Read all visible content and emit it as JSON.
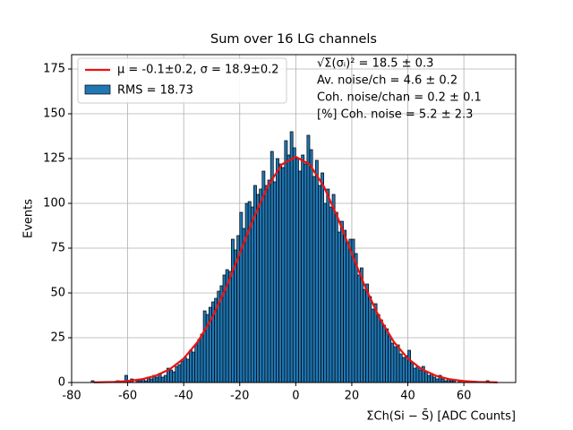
{
  "chart_data": {
    "type": "histogram",
    "title": "Sum over 16 LG channels",
    "x_label": "ΣCh(Si − S̄) [ADC Counts]",
    "y_label": "Events",
    "name": "RMS = 18.73",
    "color": "#1f77b4",
    "edgecolor": "#000000",
    "bins": [
      -73,
      -72,
      -71,
      -70,
      -69,
      -68,
      -67,
      -66,
      -65,
      -64,
      -63,
      -62,
      -61,
      -60,
      -59,
      -58,
      -57,
      -56,
      -55,
      -54,
      -53,
      -52,
      -51,
      -50,
      -49,
      -48,
      -47,
      -46,
      -45,
      -44,
      -43,
      -42,
      -41,
      -40,
      -39,
      -38,
      -37,
      -36,
      -35,
      -34,
      -33,
      -32,
      -31,
      -30,
      -29,
      -28,
      -27,
      -26,
      -25,
      -24,
      -23,
      -22,
      -21,
      -20,
      -19,
      -18,
      -17,
      -16,
      -15,
      -14,
      -13,
      -12,
      -11,
      -10,
      -9,
      -8,
      -7,
      -6,
      -5,
      -4,
      -3,
      -2,
      -1,
      0,
      1,
      2,
      3,
      4,
      5,
      6,
      7,
      8,
      9,
      10,
      11,
      12,
      13,
      14,
      15,
      16,
      17,
      18,
      19,
      20,
      21,
      22,
      23,
      24,
      25,
      26,
      27,
      28,
      29,
      30,
      31,
      32,
      33,
      34,
      35,
      36,
      37,
      38,
      39,
      40,
      41,
      42,
      43,
      44,
      45,
      46,
      47,
      48,
      49,
      50,
      51,
      52,
      53,
      54,
      55,
      56,
      57,
      58,
      59,
      60,
      61,
      62,
      63,
      64,
      65,
      66,
      67,
      68,
      69,
      70,
      71,
      72
    ],
    "counts": [
      1,
      0,
      0,
      0,
      0,
      0,
      0,
      0,
      0,
      1,
      0,
      0,
      4,
      1,
      2,
      0,
      1,
      1,
      2,
      1,
      3,
      2,
      4,
      3,
      5,
      3,
      4,
      8,
      7,
      6,
      9,
      10,
      12,
      14,
      13,
      18,
      17,
      21,
      24,
      27,
      40,
      38,
      42,
      45,
      47,
      51,
      54,
      60,
      63,
      62,
      80,
      74,
      82,
      95,
      86,
      100,
      101,
      98,
      110,
      105,
      108,
      118,
      110,
      113,
      129,
      112,
      125,
      122,
      120,
      135,
      127,
      140,
      131,
      125,
      118,
      127,
      122,
      138,
      130,
      115,
      124,
      110,
      117,
      100,
      108,
      98,
      105,
      95,
      84,
      90,
      85,
      78,
      80,
      80,
      72,
      60,
      64,
      52,
      55,
      48,
      41,
      44,
      38,
      35,
      32,
      30,
      26,
      22,
      20,
      21,
      16,
      14,
      15,
      18,
      11,
      8,
      9,
      7,
      9,
      6,
      4,
      5,
      3,
      2,
      4,
      2,
      1,
      2,
      1,
      1,
      0,
      1,
      0,
      0,
      0,
      0,
      0,
      0,
      0,
      0,
      0,
      1,
      0,
      0,
      0
    ],
    "fit": {
      "name": "μ = -0.1±0.2, σ = 18.9±0.2",
      "color": "#ee1111",
      "x": [
        -72,
        -65,
        -60,
        -55,
        -50,
        -45,
        -40,
        -35,
        -30,
        -25,
        -20,
        -15,
        -10,
        -5,
        0,
        5,
        10,
        15,
        20,
        25,
        30,
        35,
        40,
        45,
        50,
        55,
        60,
        65,
        72
      ],
      "values": [
        0.09,
        0.34,
        0.8,
        1.8,
        3.8,
        7.4,
        13.4,
        22.7,
        35.7,
        52.5,
        72.0,
        91.9,
        109.5,
        121.7,
        126,
        121.7,
        109.5,
        91.9,
        72.0,
        52.5,
        35.7,
        22.7,
        13.4,
        7.4,
        3.8,
        1.8,
        0.8,
        0.34,
        0.09
      ]
    },
    "annotations": [
      "√Σ(σᵢ)² = 18.5 ± 0.3",
      "Av. noise/ch  = 4.6 ± 0.2",
      "Coh. noise/chan  = 0.2 ± 0.1",
      "[%] Coh. noise  = 5.2 ± 2.3"
    ],
    "xlim": [
      -80,
      78.5
    ],
    "ylim": [
      0,
      183
    ],
    "xticks": [
      -80,
      -60,
      -40,
      -20,
      0,
      20,
      40,
      60
    ],
    "yticks": [
      0,
      25,
      50,
      75,
      100,
      125,
      150,
      175
    ],
    "grid": true,
    "legend": "upper left"
  }
}
